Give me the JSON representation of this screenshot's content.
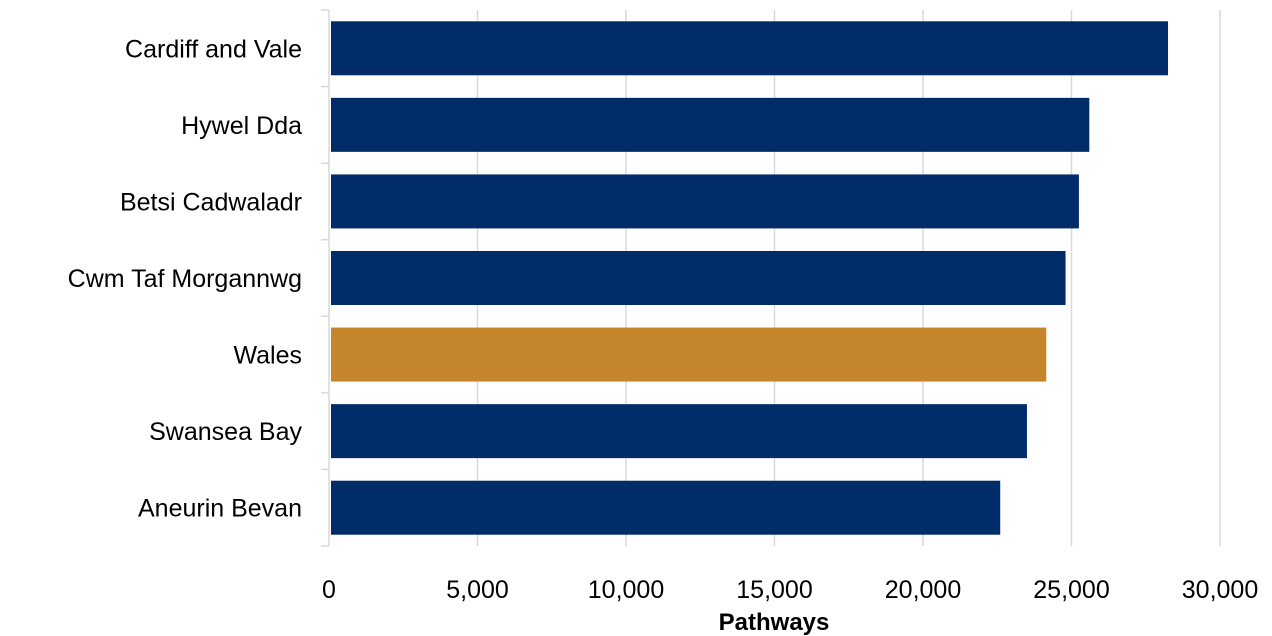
{
  "chart_data": {
    "type": "bar",
    "orientation": "horizontal",
    "categories": [
      "Cardiff and Vale",
      "Hywel Dda",
      "Betsi Cadwaladr",
      "Cwm Taf Morgannwg",
      "Wales",
      "Swansea Bay",
      "Aneurin Bevan"
    ],
    "values": [
      28250,
      25600,
      25250,
      24800,
      24150,
      23500,
      22600
    ],
    "bar_colors": [
      "#002D6A",
      "#002D6A",
      "#002D6A",
      "#002D6A",
      "#C5852A",
      "#002D6A",
      "#002D6A"
    ],
    "title": "",
    "xlabel": "Pathways",
    "ylabel": "",
    "xlim": [
      0,
      30000
    ],
    "xticks": [
      0,
      5000,
      10000,
      15000,
      20000,
      25000,
      30000
    ],
    "xtick_labels": [
      "0",
      "5,000",
      "10,000",
      "15,000",
      "20,000",
      "25,000",
      "30,000"
    ],
    "grid": "vertical",
    "legend": "none"
  }
}
